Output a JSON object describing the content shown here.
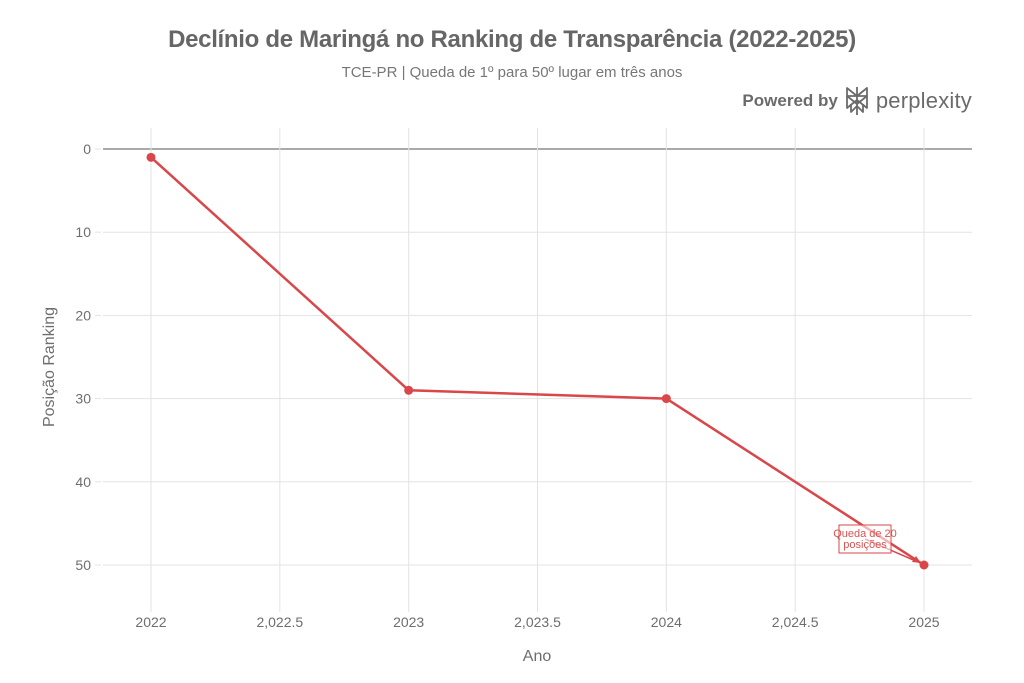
{
  "chart_data": {
    "type": "line",
    "title": "Declínio de Maringá no Ranking de Transparência (2022-2025)",
    "subtitle": "TCE-PR | Queda de 1º para 50º lugar em três anos",
    "xlabel": "Ano",
    "ylabel": "Posição Ranking",
    "x": [
      2022,
      2023,
      2024,
      2025
    ],
    "series": [
      {
        "name": "Posição Ranking",
        "values": [
          1,
          29,
          30,
          50
        ],
        "color": "#d9474a"
      }
    ],
    "xlim": [
      2021.8,
      2025.2
    ],
    "ylim": [
      55,
      -2.5
    ],
    "y_reversed": true,
    "x_ticks": [
      {
        "value": 2022,
        "label": "2022"
      },
      {
        "value": 2022.5,
        "label": "2,022.5"
      },
      {
        "value": 2023,
        "label": "2023"
      },
      {
        "value": 2023.5,
        "label": "2,023.5"
      },
      {
        "value": 2024,
        "label": "2024"
      },
      {
        "value": 2024.5,
        "label": "2,024.5"
      },
      {
        "value": 2025,
        "label": "2025"
      }
    ],
    "y_ticks": [
      {
        "value": 0,
        "label": "0"
      },
      {
        "value": 10,
        "label": "10"
      },
      {
        "value": 20,
        "label": "20"
      },
      {
        "value": 30,
        "label": "30"
      },
      {
        "value": 40,
        "label": "40"
      },
      {
        "value": 50,
        "label": "50"
      }
    ],
    "grid": true,
    "legend": "none",
    "annotations": [
      {
        "text_lines": [
          "Queda de 20",
          "posições"
        ],
        "x": 2025,
        "y": 50,
        "color": "#d9474a",
        "arrow": true
      }
    ]
  },
  "branding": {
    "powered_by": "Powered by",
    "brand": "perplexity"
  }
}
